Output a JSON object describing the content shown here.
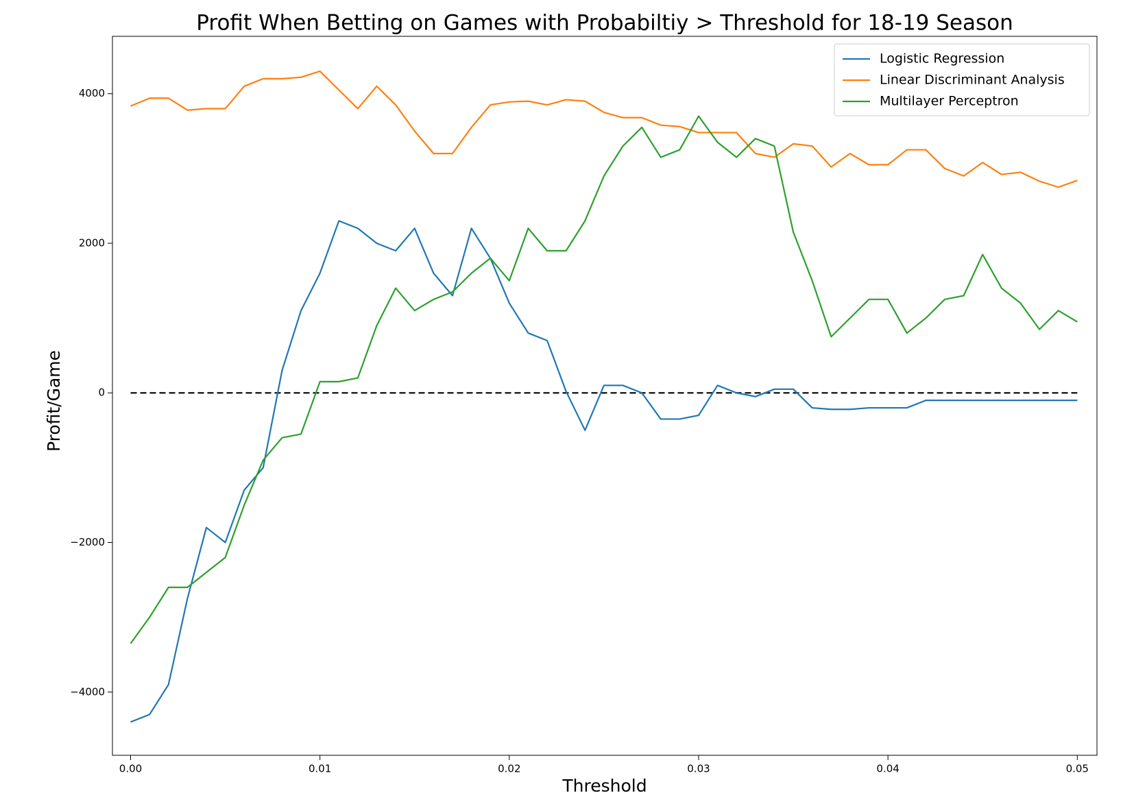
{
  "chart_data": {
    "type": "line",
    "title": "Profit When Betting on Games with Probabiltiy > Threshold for 18-19 Season",
    "x_label": "Threshold",
    "y_label": "Profit/Game",
    "x": [
      0,
      0.001,
      0.002,
      0.003,
      0.004,
      0.005,
      0.006,
      0.007,
      0.008,
      0.009,
      0.01,
      0.011,
      0.012,
      0.013,
      0.014,
      0.015,
      0.016,
      0.017,
      0.018,
      0.019,
      0.02,
      0.021,
      0.022,
      0.023,
      0.024,
      0.025,
      0.026,
      0.027,
      0.028,
      0.029,
      0.03,
      0.031,
      0.032,
      0.033,
      0.034,
      0.035,
      0.036,
      0.037,
      0.038,
      0.039,
      0.04,
      0.041,
      0.042,
      0.043,
      0.044,
      0.045,
      0.046,
      0.047,
      0.048,
      0.049,
      0.05
    ],
    "series": [
      {
        "name": "Logistic Regression",
        "color": "#1f77b4",
        "values": [
          -4400,
          -4300,
          -3900,
          -2750,
          -1800,
          -2000,
          -1300,
          -1000,
          300,
          1100,
          1600,
          2300,
          2200,
          2000,
          1900,
          2200,
          1600,
          1300,
          2200,
          1800,
          1200,
          800,
          700,
          20,
          -500,
          100,
          100,
          0,
          -350,
          -350,
          -300,
          100,
          0,
          -50,
          50,
          50,
          -200,
          -220,
          -220,
          -200,
          -200,
          -200,
          -100,
          -100,
          -100,
          -100,
          -100,
          -100,
          -100,
          -100,
          -100
        ]
      },
      {
        "name": "Linear Discriminant Analysis",
        "color": "#ff7f0e",
        "values": [
          3835,
          3940,
          3940,
          3780,
          3800,
          3800,
          4100,
          4200,
          4200,
          4220,
          4300,
          4050,
          3800,
          4100,
          3850,
          3500,
          3200,
          3200,
          3550,
          3850,
          3890,
          3900,
          3850,
          3920,
          3900,
          3750,
          3680,
          3680,
          3580,
          3560,
          3480,
          3480,
          3480,
          3200,
          3150,
          3330,
          3300,
          3020,
          3200,
          3050,
          3050,
          3250,
          3250,
          3000,
          2900,
          3080,
          2920,
          2950,
          2830,
          2750,
          2840
        ]
      },
      {
        "name": "Multilayer Perceptron",
        "color": "#2ca02c",
        "values": [
          -3350,
          -3000,
          -2600,
          -2600,
          -2400,
          -2200,
          -1500,
          -900,
          -600,
          -550,
          150,
          150,
          200,
          900,
          1400,
          1100,
          1250,
          1350,
          1600,
          1800,
          1500,
          2200,
          1900,
          1900,
          2300,
          2900,
          3300,
          3550,
          3150,
          3250,
          3700,
          3350,
          3150,
          3400,
          3300,
          2150,
          1500,
          750,
          1000,
          1250,
          1250,
          800,
          1000,
          1250,
          1300,
          1850,
          1400,
          1200,
          850,
          1100,
          950
        ]
      }
    ],
    "hline": 0,
    "xlim": [
      -0.00096,
      0.05104
    ],
    "ylim": [
      -4845,
      4767
    ],
    "xticks": [
      {
        "value": 0,
        "label": "0.00"
      },
      {
        "value": 0.01,
        "label": "0.01"
      },
      {
        "value": 0.02,
        "label": "0.02"
      },
      {
        "value": 0.03,
        "label": "0.03"
      },
      {
        "value": 0.04,
        "label": "0.04"
      },
      {
        "value": 0.05,
        "label": "0.05"
      }
    ],
    "yticks": [
      {
        "value": -4000,
        "label": "−4000"
      },
      {
        "value": -2000,
        "label": "−2000"
      },
      0,
      2000,
      4000
    ],
    "legend": "upper right",
    "grid": false
  }
}
